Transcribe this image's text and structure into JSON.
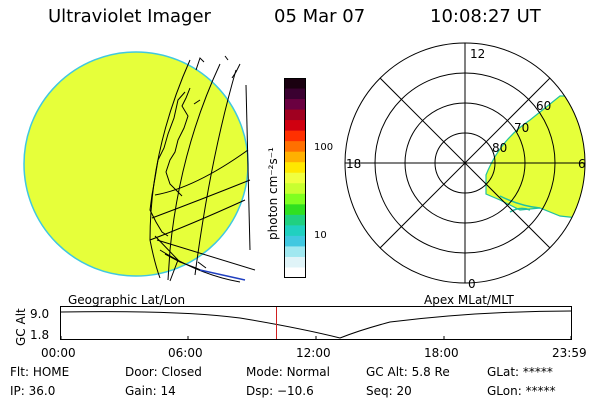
{
  "header": {
    "instrument": "Ultraviolet Imager",
    "date": "05 Mar 07",
    "time": "10:08:27 UT"
  },
  "colorbar": {
    "unit_label": "photon cm⁻²s⁻¹",
    "ticks": [
      "100",
      "10"
    ],
    "colors": [
      "#1a0010",
      "#3a0030",
      "#6a0040",
      "#a00020",
      "#d00010",
      "#ff3000",
      "#ff7000",
      "#ffb000",
      "#ffe800",
      "#f0ff40",
      "#c8ff30",
      "#80ff20",
      "#30e020",
      "#20d080",
      "#20d0c0",
      "#40c8e0",
      "#a0e8f0",
      "#e0f4f8",
      "#ffffff"
    ]
  },
  "left_map": {
    "title": "Geographic Lat/Lon"
  },
  "right_map": {
    "title": "Apex MLat/MLT",
    "mlt_labels": {
      "top": "12",
      "left": "18",
      "right": "6",
      "bottom": "0"
    },
    "lat_labels": [
      "60",
      "70",
      "80"
    ]
  },
  "altitude_plot": {
    "axis_title": "GC Alt",
    "y_ticks": [
      "9.0",
      "1.8"
    ],
    "x_ticks": [
      "00:00",
      "06:00",
      "12:00",
      "18:00",
      "23:59"
    ],
    "marker_time_hours": 10.14
  },
  "status": {
    "flt": {
      "label": "Flt:",
      "value": "HOME"
    },
    "ip": {
      "label": "IP:",
      "value": "36.0"
    },
    "door": {
      "label": "Door:",
      "value": "Closed"
    },
    "gain": {
      "label": "Gain:",
      "value": "14"
    },
    "mode": {
      "label": "Mode:",
      "value": "Normal"
    },
    "dsp": {
      "label": "Dsp:",
      "value": "−10.6"
    },
    "gcalt": {
      "label": "GC Alt:",
      "value": "5.8 Re"
    },
    "seq": {
      "label": "Seq:",
      "value": "20"
    },
    "glat": {
      "label": "GLat:",
      "value": "*****"
    },
    "glon": {
      "label": "GLon:",
      "value": "*****"
    }
  },
  "colors": {
    "emission": "#e6ff3a",
    "edge": "#40c8e0",
    "marker": "#d02020",
    "oval_line": "#2040c0"
  }
}
